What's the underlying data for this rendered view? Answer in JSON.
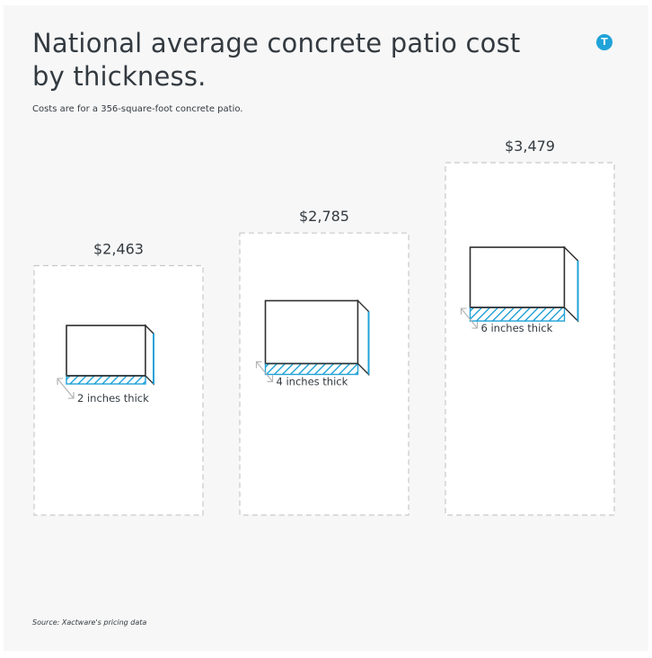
{
  "title": "National average concrete patio cost by thickness.",
  "subtitle": "Costs are for a 356-square-foot concrete patio.",
  "source": "Source: Xactware's pricing data",
  "logo_letter": "T",
  "colors": {
    "background": "#f7f7f7",
    "card": "#ffffff",
    "dashed_border": "#c9c9c9",
    "slab_outline": "#2e2e2e",
    "accent": "#20a3d8",
    "text": "#333a40"
  },
  "chart_data": {
    "type": "bar",
    "categories": [
      "2 inches thick",
      "4 inches thick",
      "6 inches thick"
    ],
    "values": [
      2463,
      2785,
      3479
    ],
    "value_labels": [
      "$2,463",
      "$2,785",
      "$3,479"
    ],
    "thickness_inches": [
      2,
      4,
      6
    ],
    "title": "National average concrete patio cost by thickness.",
    "xlabel": "",
    "ylabel": ""
  }
}
